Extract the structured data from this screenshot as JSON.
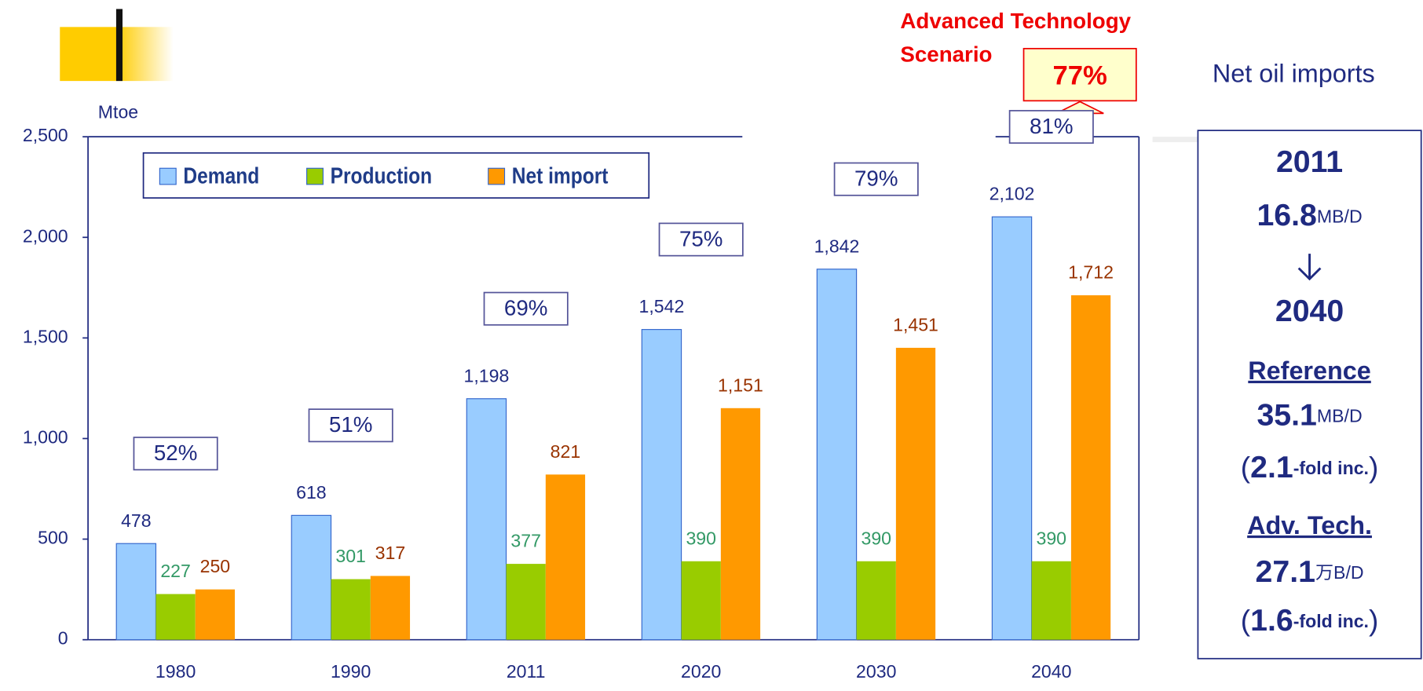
{
  "chart_data": {
    "type": "bar",
    "y_axis_label": "Mtoe",
    "categories": [
      "1980",
      "1990",
      "2011",
      "2020",
      "2030",
      "2040"
    ],
    "series": [
      {
        "name": "Demand",
        "color": "#99ccff",
        "label_color": "#1f2a80",
        "values": [
          478,
          618,
          1198,
          1542,
          1842,
          2102
        ],
        "value_labels": [
          "478",
          "618",
          "1,198",
          "1,542",
          "1,842",
          "2,102"
        ]
      },
      {
        "name": "Production",
        "color": "#99cc00",
        "label_color": "#339966",
        "values": [
          227,
          301,
          377,
          390,
          390,
          390
        ]
      },
      {
        "name": "Net import",
        "color": "#ff9900",
        "label_color": "#993300",
        "values": [
          250,
          317,
          821,
          1151,
          1451,
          1712
        ],
        "value_labels": [
          "250",
          "317",
          "821",
          "1,151",
          "1,451",
          "1,712"
        ]
      }
    ],
    "import_dependency": {
      "values": [
        52,
        51,
        69,
        75,
        79,
        81
      ],
      "value_labels": [
        "52%",
        "51%",
        "69%",
        "75%",
        "79%",
        "81%"
      ]
    },
    "scenario": {
      "label": [
        "Advanced Technology",
        "Scenario"
      ],
      "value": 77,
      "value_label": "77%"
    },
    "ylim": [
      0,
      2500
    ],
    "yticks": [
      0,
      500,
      {
        "value": 1000,
        "label": "1,000"
      },
      {
        "value": 1500,
        "label": "1,500"
      },
      {
        "value": 2000,
        "label": "2,000"
      },
      {
        "value": 2500,
        "label": "2,500"
      }
    ],
    "legend": "top-left"
  },
  "side_panel": {
    "title": "Net oil imports",
    "year_start": "2011",
    "start_value": "16.8",
    "start_unit": "MB/D",
    "year_end": "2040",
    "reference_label": "Reference",
    "reference_value": "35.1",
    "reference_unit": "MB/D",
    "open": "(",
    "close": ")",
    "reference_fold": "2.1",
    "fold_text": "-fold inc.",
    "adv_label": "Adv. Tech.",
    "adv_value": "27.1",
    "adv_unit": "万B/D",
    "adv_fold": "1.6"
  }
}
